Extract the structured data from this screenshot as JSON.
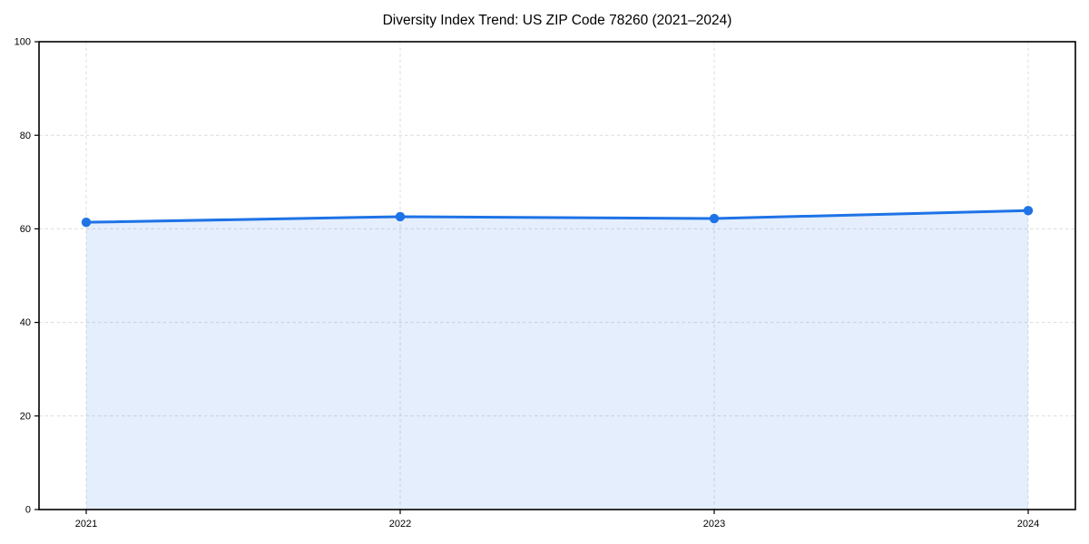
{
  "chart_data": {
    "type": "area",
    "title": "Diversity Index Trend: US ZIP Code 78260 (2021–2024)",
    "x": [
      "2021",
      "2022",
      "2023",
      "2024"
    ],
    "values": [
      61.4,
      62.6,
      62.2,
      63.9
    ],
    "xlabel": "",
    "ylabel": "",
    "ylim": [
      0,
      100
    ],
    "yticks": [
      0,
      20,
      40,
      60,
      80,
      100
    ],
    "grid": true,
    "grid_style": "dashed",
    "legend_position": "none",
    "colors": {
      "line": "#1e73e6",
      "marker": "#1e73e6",
      "fill": "#1e73e6",
      "fill_opacity": 0.12,
      "grid": "#dcdcdc",
      "spine": "#000000",
      "text": "#000000",
      "background": "#ffffff"
    }
  }
}
